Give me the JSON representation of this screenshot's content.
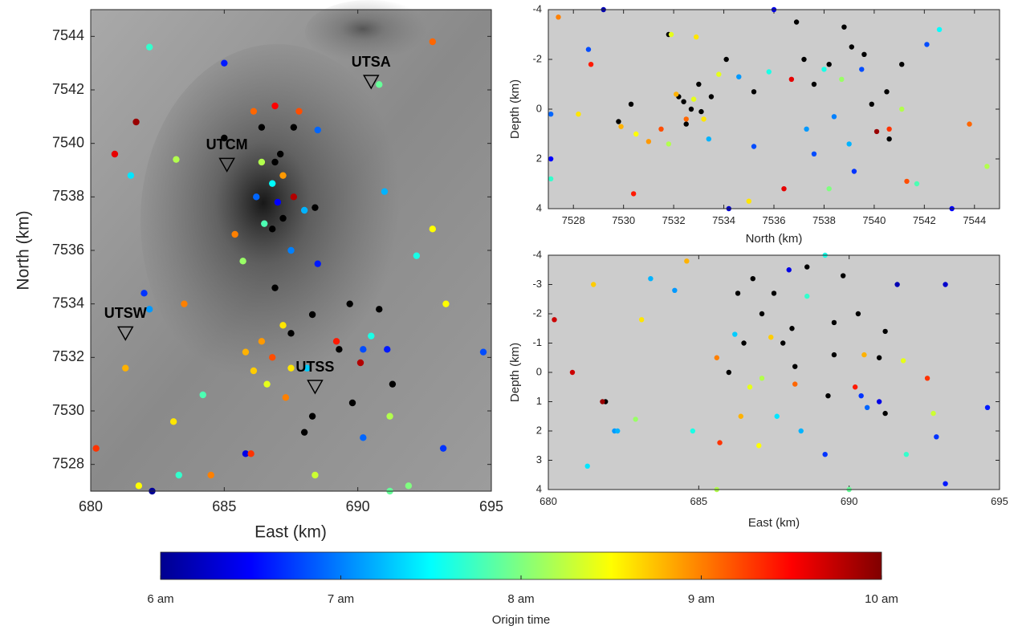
{
  "chart_data": [
    {
      "type": "scatter",
      "xlabel": "East (km)",
      "ylabel": "North (km)",
      "xlim": [
        680,
        695
      ],
      "ylim": [
        7527,
        7545
      ],
      "xticks": [
        680,
        685,
        690,
        695
      ],
      "yticks": [
        7528,
        7530,
        7532,
        7534,
        7536,
        7538,
        7540,
        7542,
        7544
      ],
      "series": [
        {
          "color": "#000000",
          "x": [
            685,
            686.4,
            687.6,
            687.1,
            687.2,
            688.4,
            686.8,
            686.9,
            689.7,
            690.8,
            689.3,
            687.5,
            688.3,
            688.3,
            689.8,
            691.3,
            688,
            686.9
          ],
          "y": [
            7540.2,
            7540.6,
            7540.6,
            7539.6,
            7537.2,
            7537.6,
            7536.8,
            7534.6,
            7534,
            7533.8,
            7532.3,
            7532.9,
            7533.6,
            7529.8,
            7530.3,
            7531,
            7529.2,
            7539.3
          ]
        },
        {
          "colormap": "jet",
          "x": [
            682.2,
            685,
            692.8,
            681.7,
            680.9,
            681.5,
            683.2,
            690.8,
            686.1,
            686.9,
            687.8,
            688.5,
            686.4,
            686.8,
            687.2,
            687.6,
            686.2,
            687,
            688,
            686.5,
            685.4,
            685.7,
            687.5,
            688.5,
            691,
            692.2,
            692.8,
            693.3,
            682,
            682.2,
            683.5,
            686.4,
            686.8,
            687.2,
            686.1,
            686.6,
            687.5,
            685.8,
            687.3,
            688.1,
            690.2,
            690.5,
            690.1,
            689.2,
            691.1,
            681.3,
            683.1,
            684.2,
            685.8,
            686,
            688.4,
            691.2,
            691.9,
            693.2,
            694.7,
            680.2,
            681.8,
            683.3,
            684.5,
            682.3,
            690.2,
            691.2
          ],
          "y": [
            7543.6,
            7543,
            7543.8,
            7540.8,
            7539.6,
            7538.8,
            7539.4,
            7542.2,
            7541.2,
            7541.4,
            7541.2,
            7540.5,
            7539.3,
            7538.5,
            7538.8,
            7538,
            7538,
            7537.8,
            7537.5,
            7537,
            7536.6,
            7535.6,
            7536,
            7535.5,
            7538.2,
            7535.8,
            7536.8,
            7534,
            7534.4,
            7533.8,
            7534,
            7532.6,
            7532,
            7533.2,
            7531.5,
            7531,
            7531.6,
            7532.2,
            7530.5,
            7531.6,
            7532.3,
            7532.8,
            7531.8,
            7532.6,
            7532.3,
            7531.6,
            7529.6,
            7530.6,
            7528.4,
            7528.4,
            7527.6,
            7527,
            7527.2,
            7528.6,
            7532.2,
            7528.6,
            7527.2,
            7527.6,
            7527.6,
            7527,
            7529,
            7529.8
          ],
          "c": [
            7.7,
            6.6,
            9.1,
            9.9,
            9.6,
            7.4,
            8.2,
            7.9,
            9.1,
            9.5,
            9.2,
            6.9,
            8.2,
            7.5,
            8.9,
            9.8,
            6.9,
            6.5,
            7.2,
            7.8,
            9,
            8.1,
            7,
            6.6,
            7.2,
            7.6,
            8.5,
            8.5,
            6.7,
            7.1,
            9,
            8.9,
            9.2,
            8.6,
            8.7,
            8.4,
            8.6,
            8.8,
            9,
            7.3,
            6.8,
            7.6,
            9.8,
            9.4,
            6.6,
            8.8,
            8.6,
            7.8,
            6.4,
            9.3,
            8.3,
            7.9,
            8,
            6.7,
            6.8,
            9.3,
            8.5,
            7.7,
            9,
            6.1,
            6.9,
            8.2
          ]
        }
      ],
      "stations": [
        {
          "label": "UTSA",
          "x": 690.5,
          "y": 7542.3
        },
        {
          "label": "UTCM",
          "x": 685.1,
          "y": 7539.2
        },
        {
          "label": "UTSW",
          "x": 681.3,
          "y": 7532.9
        },
        {
          "label": "UTSS",
          "x": 688.4,
          "y": 7530.9
        }
      ]
    },
    {
      "type": "scatter",
      "xlabel": "North (km)",
      "ylabel": "Depth (km)",
      "xlim": [
        7527,
        7545
      ],
      "ylim": [
        -4,
        4
      ],
      "y_reversed": true,
      "xticks": [
        7528,
        7530,
        7532,
        7534,
        7536,
        7538,
        7540,
        7542,
        7544
      ],
      "yticks": [
        -4,
        -2,
        0,
        2,
        4
      ],
      "series": [
        {
          "color": "#000000",
          "x": [
            7529.8,
            7530.3,
            7531.8,
            7532.2,
            7532.7,
            7533,
            7532.5,
            7533.5,
            7534.1,
            7535.2,
            7536.9,
            7537.2,
            7537.6,
            7538.2,
            7538.8,
            7539.1,
            7539.6,
            7539.9,
            7540.5,
            7541.1,
            7540.6,
            7532.4,
            7533.1
          ],
          "y": [
            0.5,
            -0.2,
            -3,
            -0.5,
            0,
            -1,
            0.6,
            -0.5,
            -2,
            -0.7,
            -3.5,
            -2,
            -1,
            -1.8,
            -3.3,
            -2.5,
            -2.2,
            -0.2,
            -0.7,
            -1.8,
            1.2,
            -0.3,
            0.1
          ]
        },
        {
          "colormap": "jet",
          "x": [
            7527.4,
            7528.2,
            7527.1,
            7527.1,
            7527.1,
            7528.6,
            7528.7,
            7529.9,
            7530.5,
            7531,
            7531.5,
            7531.8,
            7532.1,
            7532.5,
            7532.8,
            7533.2,
            7533.4,
            7533.8,
            7530.4,
            7531.9,
            7532.9,
            7534.6,
            7535.2,
            7535.8,
            7536.7,
            7536.4,
            7537.3,
            7537.6,
            7538,
            7538.4,
            7538.7,
            7539,
            7539.2,
            7539.5,
            7540.1,
            7540.6,
            7541.1,
            7541.3,
            7541.7,
            7542.1,
            7542.6,
            7543.1,
            7543.8,
            7544.5,
            7534.2,
            7536,
            7529.2,
            7538.2,
            7535
          ],
          "y": [
            -3.7,
            0.2,
            0.2,
            2,
            2.8,
            -2.4,
            -1.8,
            0.7,
            1,
            1.3,
            0.8,
            1.4,
            -0.6,
            0.4,
            -0.4,
            0.4,
            1.2,
            -1.4,
            3.4,
            -3,
            -2.9,
            -1.3,
            1.5,
            -1.5,
            -1.2,
            3.2,
            0.8,
            1.8,
            -1.6,
            0.3,
            -1.2,
            1.4,
            2.5,
            -1.6,
            0.9,
            0.8,
            0,
            2.9,
            3,
            -2.6,
            -3.2,
            4,
            0.6,
            2.3,
            4,
            -4,
            -4,
            3.2,
            3.7
          ],
          "c": [
            9,
            8.6,
            6.9,
            6.5,
            7.7,
            6.8,
            9.4,
            8.8,
            8.5,
            8.9,
            9.2,
            8.2,
            8.8,
            9.1,
            8.4,
            8.6,
            7.2,
            8.4,
            9.4,
            8.4,
            8.6,
            7.1,
            6.8,
            7.6,
            9.6,
            9.6,
            7.1,
            6.8,
            7.6,
            7,
            8.1,
            7.2,
            6.7,
            6.8,
            9.9,
            9.3,
            8.2,
            9.2,
            7.8,
            6.8,
            7.5,
            6.5,
            9.1,
            8.2,
            6.3,
            6.4,
            6.2,
            8,
            8.6
          ]
        }
      ]
    },
    {
      "type": "scatter",
      "xlabel": "East (km)",
      "ylabel": "Depth (km)",
      "xlim": [
        680,
        695
      ],
      "ylim": [
        -4,
        4
      ],
      "y_reversed": true,
      "xticks": [
        680,
        685,
        690,
        695
      ],
      "yticks": [
        -4,
        -3,
        -2,
        -1,
        0,
        1,
        2,
        3,
        4
      ],
      "series": [
        {
          "color": "#000000",
          "x": [
            681.9,
            686,
            686.3,
            686.8,
            687.1,
            686.5,
            687.5,
            687.8,
            688.1,
            688.6,
            689.5,
            689.5,
            689.8,
            690.3,
            691.2,
            691,
            691.2,
            689.3,
            688.2
          ],
          "y": [
            1,
            0,
            -2.7,
            -3.2,
            -2,
            -1,
            -2.7,
            -1,
            -1.5,
            -3.6,
            -1.7,
            -0.6,
            -3.3,
            -2,
            -1.4,
            -0.5,
            1.4,
            0.8,
            -0.2
          ]
        },
        {
          "colormap": "jet",
          "x": [
            680.2,
            680.8,
            681.5,
            681.8,
            682.2,
            682.3,
            681.3,
            683.1,
            682.9,
            683.4,
            684.2,
            684.6,
            684.8,
            685.6,
            685.7,
            685.6,
            686.2,
            686.4,
            686.7,
            687.1,
            687.4,
            687,
            687.6,
            688,
            688.2,
            688.4,
            688.6,
            689.2,
            689.2,
            690,
            690.4,
            690.6,
            690.2,
            690.5,
            691,
            691.6,
            691.8,
            692.6,
            692.9,
            693.2,
            693.2,
            694.6,
            692.8,
            691.9
          ],
          "y": [
            -1.8,
            0,
            -3,
            1,
            2,
            2,
            3.2,
            -1.8,
            1.6,
            -3.2,
            -2.8,
            -3.8,
            2,
            -0.5,
            2.4,
            4,
            -1.3,
            1.5,
            0.5,
            0.2,
            -1.2,
            2.5,
            1.5,
            -3.5,
            0.4,
            2,
            -2.6,
            2.8,
            -4,
            4,
            0.8,
            1.2,
            0.5,
            -0.6,
            1,
            -3,
            -0.4,
            0.2,
            2.2,
            -3,
            3.8,
            1.2,
            1.4,
            2.8
          ],
          "c": [
            9.7,
            9.7,
            8.7,
            9.9,
            7.1,
            7.2,
            7.4,
            8.6,
            8.1,
            7.2,
            7.1,
            8.8,
            7.6,
            9,
            9.3,
            8.2,
            7.3,
            8.8,
            8.4,
            8.2,
            8.7,
            8.5,
            7.4,
            6.4,
            9.1,
            7.2,
            7.7,
            6.7,
            7.6,
            7.9,
            6.7,
            6.9,
            9.4,
            8.8,
            6.4,
            6.2,
            8.4,
            9.3,
            6.7,
            6.3,
            6.6,
            6.6,
            8.3,
            7.7
          ]
        }
      ]
    },
    {
      "type": "colorbar",
      "colormap": "jet",
      "label": "Origin time",
      "clim": [
        6,
        10
      ],
      "cticks": [
        {
          "value": 6,
          "label": "6 am"
        },
        {
          "value": 7,
          "label": "7 am"
        },
        {
          "value": 8,
          "label": "8 am"
        },
        {
          "value": 9,
          "label": "9 am"
        },
        {
          "value": 10,
          "label": "10 am"
        }
      ]
    }
  ]
}
